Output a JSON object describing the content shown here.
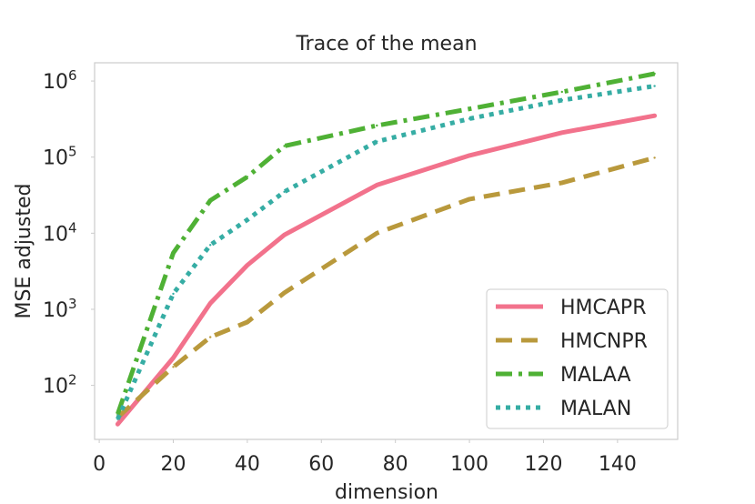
{
  "chart_data": {
    "type": "line",
    "title": "Trace of the mean",
    "xlabel": "dimension",
    "ylabel": "MSE adjusted",
    "xlim": [
      -1.25,
      156.25
    ],
    "ylim_log10": [
      1.29,
      6.24
    ],
    "yscale": "log",
    "grid": false,
    "legend_position": "lower-right",
    "x_ticks": [
      {
        "value": 0,
        "label": "0"
      },
      {
        "value": 20,
        "label": "20"
      },
      {
        "value": 40,
        "label": "40"
      },
      {
        "value": 60,
        "label": "60"
      },
      {
        "value": 80,
        "label": "80"
      },
      {
        "value": 100,
        "label": "100"
      },
      {
        "value": 120,
        "label": "120"
      },
      {
        "value": 140,
        "label": "140"
      }
    ],
    "y_ticks": [
      {
        "exponent": 2,
        "base": "10",
        "sup": "2"
      },
      {
        "exponent": 3,
        "base": "10",
        "sup": "3"
      },
      {
        "exponent": 4,
        "base": "10",
        "sup": "4"
      },
      {
        "exponent": 5,
        "base": "10",
        "sup": "5"
      },
      {
        "exponent": 6,
        "base": "10",
        "sup": "6"
      }
    ],
    "series": [
      {
        "name": "HMCAPR",
        "color": "#f2728c",
        "dash": "solid",
        "points": [
          [
            5,
            31
          ],
          [
            20,
            230
          ],
          [
            30,
            1200
          ],
          [
            40,
            3800
          ],
          [
            50,
            9500
          ],
          [
            75,
            43000
          ],
          [
            100,
            105000
          ],
          [
            125,
            210000
          ],
          [
            150,
            350000
          ]
        ]
      },
      {
        "name": "HMCNPR",
        "color": "#b9993c",
        "dash": "dashed",
        "points": [
          [
            5,
            38
          ],
          [
            20,
            175
          ],
          [
            30,
            430
          ],
          [
            40,
            680
          ],
          [
            50,
            1650
          ],
          [
            75,
            10000
          ],
          [
            100,
            28000
          ],
          [
            125,
            46000
          ],
          [
            150,
            98000
          ]
        ]
      },
      {
        "name": "MALAA",
        "color": "#4fb135",
        "dash": "dashdot",
        "points": [
          [
            5,
            42
          ],
          [
            20,
            5500
          ],
          [
            30,
            27000
          ],
          [
            40,
            55000
          ],
          [
            50,
            140000
          ],
          [
            75,
            260000
          ],
          [
            100,
            430000
          ],
          [
            125,
            720000
          ],
          [
            150,
            1250000
          ]
        ]
      },
      {
        "name": "MALAN",
        "color": "#36ada4",
        "dash": "dotted",
        "points": [
          [
            5,
            36
          ],
          [
            20,
            1600
          ],
          [
            30,
            7000
          ],
          [
            40,
            15000
          ],
          [
            50,
            35000
          ],
          [
            75,
            160000
          ],
          [
            100,
            320000
          ],
          [
            125,
            560000
          ],
          [
            150,
            860000
          ]
        ]
      }
    ]
  }
}
